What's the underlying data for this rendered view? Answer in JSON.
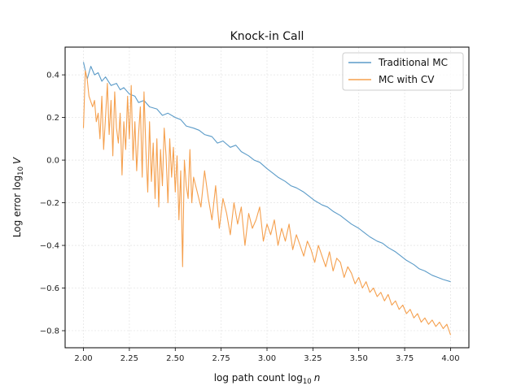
{
  "chart_data": {
    "type": "line",
    "title": "Knock-in Call",
    "xlabel": {
      "prefix": "log path count log",
      "sub": "10",
      "var": "n"
    },
    "ylabel": {
      "prefix": "Log error log",
      "sub": "10",
      "var": "V"
    },
    "xlim": [
      1.9,
      4.1
    ],
    "ylim": [
      -0.88,
      0.53
    ],
    "xticks": [
      2.0,
      2.25,
      2.5,
      2.75,
      3.0,
      3.25,
      3.5,
      3.75,
      4.0
    ],
    "xtick_labels": [
      "2.00",
      "2.25",
      "2.50",
      "2.75",
      "3.00",
      "3.25",
      "3.50",
      "3.75",
      "4.00"
    ],
    "yticks": [
      0.4,
      0.2,
      0.0,
      -0.2,
      -0.4,
      -0.6,
      -0.8
    ],
    "ytick_labels": [
      "0.4",
      "0.2",
      "0.0",
      "−0.2",
      "−0.4",
      "−0.6",
      "−0.8"
    ],
    "grid": true,
    "legend_position": "top-right",
    "series": [
      {
        "name": "Traditional MC",
        "color": "#5b9bc8",
        "x": [
          2.0,
          2.02,
          2.04,
          2.06,
          2.08,
          2.1,
          2.12,
          2.15,
          2.18,
          2.2,
          2.22,
          2.25,
          2.28,
          2.3,
          2.33,
          2.36,
          2.4,
          2.43,
          2.46,
          2.5,
          2.53,
          2.56,
          2.6,
          2.63,
          2.66,
          2.7,
          2.73,
          2.76,
          2.8,
          2.83,
          2.86,
          2.9,
          2.93,
          2.96,
          3.0,
          3.03,
          3.06,
          3.1,
          3.13,
          3.16,
          3.2,
          3.23,
          3.26,
          3.3,
          3.33,
          3.36,
          3.4,
          3.43,
          3.46,
          3.5,
          3.53,
          3.56,
          3.6,
          3.63,
          3.66,
          3.7,
          3.73,
          3.76,
          3.8,
          3.83,
          3.86,
          3.9,
          3.93,
          3.96,
          4.0
        ],
        "values": [
          0.46,
          0.38,
          0.44,
          0.4,
          0.41,
          0.37,
          0.39,
          0.35,
          0.36,
          0.33,
          0.34,
          0.31,
          0.3,
          0.27,
          0.28,
          0.25,
          0.24,
          0.21,
          0.22,
          0.2,
          0.19,
          0.16,
          0.15,
          0.14,
          0.12,
          0.11,
          0.08,
          0.09,
          0.06,
          0.07,
          0.04,
          0.02,
          0.0,
          -0.01,
          -0.04,
          -0.06,
          -0.08,
          -0.1,
          -0.12,
          -0.13,
          -0.15,
          -0.17,
          -0.19,
          -0.21,
          -0.22,
          -0.24,
          -0.26,
          -0.28,
          -0.3,
          -0.32,
          -0.34,
          -0.36,
          -0.38,
          -0.39,
          -0.41,
          -0.43,
          -0.45,
          -0.47,
          -0.49,
          -0.51,
          -0.52,
          -0.54,
          -0.55,
          -0.56,
          -0.57
        ]
      },
      {
        "name": "MC with CV",
        "color": "#f5a04e",
        "x": [
          2.0,
          2.01,
          2.02,
          2.03,
          2.05,
          2.06,
          2.07,
          2.08,
          2.09,
          2.1,
          2.11,
          2.12,
          2.13,
          2.14,
          2.15,
          2.16,
          2.17,
          2.18,
          2.19,
          2.2,
          2.21,
          2.22,
          2.23,
          2.24,
          2.25,
          2.26,
          2.27,
          2.28,
          2.29,
          2.3,
          2.31,
          2.32,
          2.33,
          2.34,
          2.35,
          2.36,
          2.37,
          2.38,
          2.39,
          2.4,
          2.41,
          2.42,
          2.43,
          2.44,
          2.45,
          2.46,
          2.47,
          2.48,
          2.49,
          2.5,
          2.51,
          2.52,
          2.53,
          2.54,
          2.55,
          2.56,
          2.57,
          2.58,
          2.59,
          2.6,
          2.62,
          2.64,
          2.66,
          2.68,
          2.7,
          2.72,
          2.74,
          2.76,
          2.78,
          2.8,
          2.82,
          2.84,
          2.86,
          2.88,
          2.9,
          2.92,
          2.94,
          2.96,
          2.98,
          3.0,
          3.02,
          3.04,
          3.06,
          3.08,
          3.1,
          3.12,
          3.14,
          3.16,
          3.18,
          3.2,
          3.22,
          3.24,
          3.26,
          3.28,
          3.3,
          3.32,
          3.34,
          3.36,
          3.38,
          3.4,
          3.42,
          3.44,
          3.46,
          3.48,
          3.5,
          3.52,
          3.54,
          3.56,
          3.58,
          3.6,
          3.62,
          3.64,
          3.66,
          3.68,
          3.7,
          3.72,
          3.74,
          3.76,
          3.78,
          3.8,
          3.82,
          3.84,
          3.86,
          3.88,
          3.9,
          3.92,
          3.94,
          3.96,
          3.98,
          4.0
        ],
        "values": [
          0.15,
          0.42,
          0.38,
          0.3,
          0.25,
          0.28,
          0.18,
          0.22,
          0.1,
          0.3,
          0.05,
          0.2,
          0.36,
          0.12,
          0.28,
          0.02,
          0.32,
          0.15,
          0.08,
          0.22,
          -0.07,
          0.18,
          0.05,
          0.3,
          0.1,
          0.35,
          0.0,
          0.18,
          -0.05,
          0.12,
          0.25,
          -0.08,
          0.32,
          0.05,
          -0.15,
          0.18,
          -0.1,
          0.08,
          -0.18,
          0.1,
          -0.22,
          0.05,
          -0.12,
          0.15,
          0.02,
          -0.2,
          0.1,
          -0.08,
          0.06,
          -0.15,
          0.02,
          -0.28,
          -0.05,
          -0.5,
          0.0,
          -0.12,
          -0.18,
          0.05,
          -0.2,
          -0.08,
          -0.15,
          -0.22,
          -0.05,
          -0.18,
          -0.28,
          -0.12,
          -0.32,
          -0.18,
          -0.25,
          -0.35,
          -0.2,
          -0.3,
          -0.22,
          -0.4,
          -0.25,
          -0.32,
          -0.28,
          -0.22,
          -0.38,
          -0.3,
          -0.35,
          -0.28,
          -0.4,
          -0.32,
          -0.38,
          -0.3,
          -0.42,
          -0.35,
          -0.4,
          -0.45,
          -0.38,
          -0.42,
          -0.48,
          -0.4,
          -0.45,
          -0.5,
          -0.43,
          -0.52,
          -0.46,
          -0.48,
          -0.55,
          -0.5,
          -0.53,
          -0.58,
          -0.55,
          -0.6,
          -0.57,
          -0.62,
          -0.6,
          -0.64,
          -0.62,
          -0.66,
          -0.63,
          -0.68,
          -0.66,
          -0.7,
          -0.68,
          -0.72,
          -0.7,
          -0.74,
          -0.72,
          -0.76,
          -0.74,
          -0.77,
          -0.75,
          -0.78,
          -0.76,
          -0.79,
          -0.77,
          -0.82
        ]
      }
    ]
  }
}
